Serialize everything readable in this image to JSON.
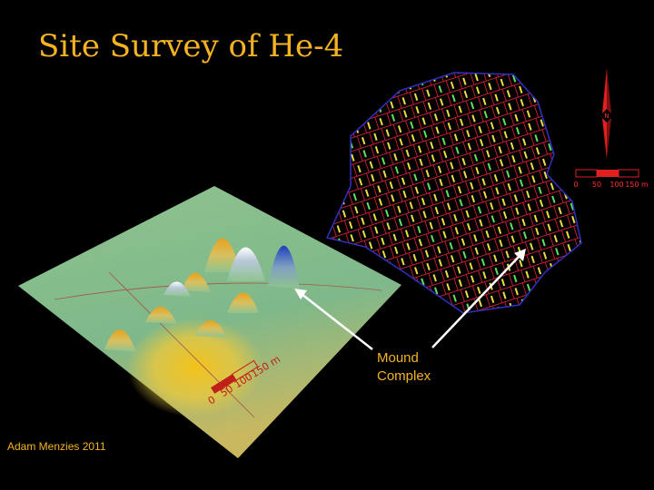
{
  "title": "Site Survey of He-4",
  "annotation": {
    "lines": [
      "Mound",
      "Complex"
    ]
  },
  "credit": "Adam Menzies 2011",
  "north_label": "N",
  "map_scale": {
    "labels": [
      "0",
      "50",
      "100",
      "150 m"
    ]
  },
  "terrain_scale": {
    "labels": [
      "0",
      "50",
      "100",
      "150 m"
    ]
  }
}
